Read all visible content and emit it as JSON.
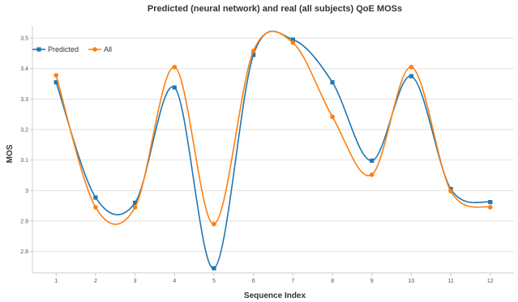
{
  "chart_data": {
    "type": "line",
    "title": "Predicted (neural network) and real (all subjects) QoE MOSs",
    "xlabel": "Sequence Index",
    "ylabel": "MOS",
    "x": [
      1,
      2,
      3,
      4,
      5,
      6,
      7,
      8,
      9,
      10,
      11,
      12
    ],
    "ylim": [
      2.8,
      3.5
    ],
    "yticks": [
      "2.8",
      "2.9",
      "3",
      "3.1",
      "3.2",
      "3.3",
      "3.4",
      "3.5"
    ],
    "ytick_values": [
      2.8,
      2.9,
      3.0,
      3.1,
      3.2,
      3.3,
      3.4,
      3.5
    ],
    "grid": true,
    "legend_position": "top-left",
    "series": [
      {
        "name": "Predicted",
        "color": "#1f77b4",
        "marker": "square",
        "values": [
          3.355,
          2.977,
          2.96,
          3.338,
          2.745,
          3.445,
          3.495,
          3.355,
          3.098,
          3.375,
          3.005,
          2.962
        ]
      },
      {
        "name": "All",
        "color": "#ff7f0e",
        "marker": "circle",
        "values": [
          3.378,
          2.945,
          2.945,
          3.405,
          2.89,
          3.458,
          3.485,
          3.242,
          3.052,
          3.405,
          2.998,
          2.945
        ]
      }
    ]
  }
}
